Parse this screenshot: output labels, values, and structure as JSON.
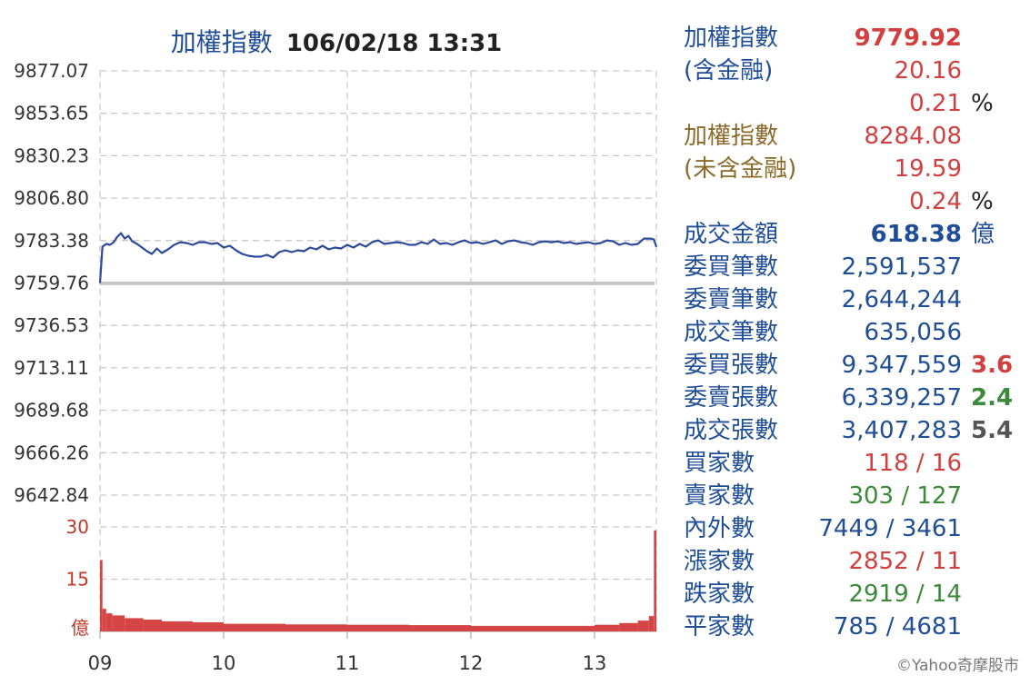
{
  "chart_data": [
    {
      "type": "line",
      "title": "加權指數",
      "datetime": "106/02/18 13:31",
      "x_ticks": [
        "09",
        "10",
        "11",
        "12",
        "13"
      ],
      "x_range_hours": [
        9.0,
        13.5
      ],
      "y_ticks": [
        "9877.07",
        "9853.65",
        "9830.23",
        "9806.80",
        "9783.38",
        "9759.76",
        "9736.53",
        "9713.11",
        "9689.68",
        "9666.26",
        "9642.84"
      ],
      "ylim": [
        9642.84,
        9877.07
      ],
      "reference_value": 9759.76,
      "grid": true,
      "series": [
        {
          "color": "#2c4a9a",
          "points": [
            [
              9.0,
              9760.0
            ],
            [
              9.02,
              9780.0
            ],
            [
              9.05,
              9781.5
            ],
            [
              9.08,
              9781.0
            ],
            [
              9.11,
              9782.5
            ],
            [
              9.14,
              9785.5
            ],
            [
              9.17,
              9787.5
            ],
            [
              9.2,
              9784.5
            ],
            [
              9.23,
              9786.0
            ],
            [
              9.26,
              9783.0
            ],
            [
              9.3,
              9781.5
            ],
            [
              9.34,
              9779.5
            ],
            [
              9.38,
              9777.5
            ],
            [
              9.42,
              9776.0
            ],
            [
              9.46,
              9779.0
            ],
            [
              9.5,
              9776.5
            ],
            [
              9.55,
              9778.5
            ],
            [
              9.6,
              9781.0
            ],
            [
              9.65,
              9782.5
            ],
            [
              9.7,
              9782.0
            ],
            [
              9.75,
              9781.0
            ],
            [
              9.8,
              9782.5
            ],
            [
              9.85,
              9782.5
            ],
            [
              9.9,
              9781.5
            ],
            [
              9.95,
              9782.0
            ],
            [
              10.0,
              9779.5
            ],
            [
              10.05,
              9780.5
            ],
            [
              10.1,
              9778.0
            ],
            [
              10.15,
              9776.0
            ],
            [
              10.2,
              9775.0
            ],
            [
              10.25,
              9774.5
            ],
            [
              10.3,
              9774.5
            ],
            [
              10.35,
              9775.5
            ],
            [
              10.4,
              9774.0
            ],
            [
              10.45,
              9777.0
            ],
            [
              10.5,
              9778.0
            ],
            [
              10.55,
              9777.0
            ],
            [
              10.6,
              9778.0
            ],
            [
              10.65,
              9777.5
            ],
            [
              10.7,
              9779.5
            ],
            [
              10.75,
              9778.5
            ],
            [
              10.8,
              9780.5
            ],
            [
              10.85,
              9778.5
            ],
            [
              10.9,
              9779.5
            ],
            [
              10.95,
              9779.0
            ],
            [
              11.0,
              9781.0
            ],
            [
              11.05,
              9779.5
            ],
            [
              11.1,
              9781.5
            ],
            [
              11.15,
              9780.0
            ],
            [
              11.2,
              9782.5
            ],
            [
              11.25,
              9783.5
            ],
            [
              11.3,
              9781.5
            ],
            [
              11.35,
              9782.0
            ],
            [
              11.4,
              9782.5
            ],
            [
              11.45,
              9782.0
            ],
            [
              11.5,
              9781.0
            ],
            [
              11.55,
              9781.0
            ],
            [
              11.6,
              9782.5
            ],
            [
              11.65,
              9781.5
            ],
            [
              11.7,
              9784.0
            ],
            [
              11.75,
              9781.5
            ],
            [
              11.8,
              9782.0
            ],
            [
              11.85,
              9781.0
            ],
            [
              11.9,
              9782.5
            ],
            [
              11.95,
              9783.5
            ],
            [
              12.0,
              9782.0
            ],
            [
              12.05,
              9782.5
            ],
            [
              12.1,
              9781.5
            ],
            [
              12.15,
              9782.5
            ],
            [
              12.2,
              9783.5
            ],
            [
              12.25,
              9781.5
            ],
            [
              12.3,
              9783.0
            ],
            [
              12.35,
              9783.5
            ],
            [
              12.4,
              9782.5
            ],
            [
              12.45,
              9782.0
            ],
            [
              12.5,
              9781.0
            ],
            [
              12.55,
              9782.5
            ],
            [
              12.6,
              9783.0
            ],
            [
              12.65,
              9782.5
            ],
            [
              12.7,
              9783.0
            ],
            [
              12.75,
              9782.0
            ],
            [
              12.8,
              9782.5
            ],
            [
              12.85,
              9781.5
            ],
            [
              12.9,
              9782.0
            ],
            [
              12.95,
              9782.5
            ],
            [
              13.0,
              9781.5
            ],
            [
              13.05,
              9782.0
            ],
            [
              13.1,
              9783.5
            ],
            [
              13.15,
              9783.0
            ],
            [
              13.2,
              9781.0
            ],
            [
              13.25,
              9782.0
            ],
            [
              13.3,
              9781.0
            ],
            [
              13.35,
              9781.5
            ],
            [
              13.4,
              9784.5
            ],
            [
              13.45,
              9784.5
            ],
            [
              13.48,
              9784.0
            ],
            [
              13.5,
              9779.92
            ]
          ]
        }
      ]
    },
    {
      "type": "bar",
      "y_ticks": [
        "30",
        "15",
        "億"
      ],
      "ylim": [
        0,
        30
      ],
      "x_range_hours": [
        9.0,
        13.5
      ],
      "color": "#d64545",
      "values": [
        {
          "start": 9.0,
          "end": 9.02,
          "value": 20.5
        },
        {
          "start": 9.02,
          "end": 9.05,
          "value": 6.5
        },
        {
          "start": 9.05,
          "end": 9.1,
          "value": 5.2
        },
        {
          "start": 9.1,
          "end": 9.2,
          "value": 4.6
        },
        {
          "start": 9.2,
          "end": 9.35,
          "value": 3.8
        },
        {
          "start": 9.35,
          "end": 9.5,
          "value": 3.4
        },
        {
          "start": 9.5,
          "end": 9.75,
          "value": 2.9
        },
        {
          "start": 9.75,
          "end": 10.0,
          "value": 2.6
        },
        {
          "start": 10.0,
          "end": 10.5,
          "value": 2.2
        },
        {
          "start": 10.5,
          "end": 11.0,
          "value": 2.0
        },
        {
          "start": 11.0,
          "end": 11.5,
          "value": 1.9
        },
        {
          "start": 11.5,
          "end": 12.0,
          "value": 1.8
        },
        {
          "start": 12.0,
          "end": 12.5,
          "value": 1.6
        },
        {
          "start": 12.5,
          "end": 13.0,
          "value": 1.6
        },
        {
          "start": 13.0,
          "end": 13.2,
          "value": 1.9
        },
        {
          "start": 13.2,
          "end": 13.35,
          "value": 2.4
        },
        {
          "start": 13.35,
          "end": 13.44,
          "value": 3.1
        },
        {
          "start": 13.44,
          "end": 13.48,
          "value": 4.4
        },
        {
          "start": 13.48,
          "end": 13.5,
          "value": 29.0
        }
      ]
    }
  ],
  "panel": {
    "rows": [
      {
        "label": "加權指數",
        "value": "9779.92",
        "extra": ""
      },
      {
        "label": "(含金融)",
        "value": "20.16",
        "extra": ""
      },
      {
        "label": "",
        "value": "0.21",
        "extra": "%"
      },
      {
        "label": "加權指數",
        "value": "8284.08",
        "extra": ""
      },
      {
        "label": "(未含金融)",
        "value": "19.59",
        "extra": ""
      },
      {
        "label": "",
        "value": "0.24",
        "extra": "%"
      },
      {
        "label": "成交金額",
        "value": "618.38",
        "extra": "億"
      },
      {
        "label": "委買筆數",
        "value": "2,591,537",
        "extra": ""
      },
      {
        "label": "委賣筆數",
        "value": "2,644,244",
        "extra": ""
      },
      {
        "label": "成交筆數",
        "value": "635,056",
        "extra": ""
      },
      {
        "label": "委買張數",
        "value": "9,347,559",
        "extra": "3.6"
      },
      {
        "label": "委賣張數",
        "value": "6,339,257",
        "extra": "2.4"
      },
      {
        "label": "成交張數",
        "value": "3,407,283",
        "extra": "5.4"
      },
      {
        "label": "買家數",
        "value": "118 / 16",
        "extra": ""
      },
      {
        "label": "賣家數",
        "value": "303 / 127",
        "extra": ""
      },
      {
        "label": "內外數",
        "value": "7449 / 3461",
        "extra": ""
      },
      {
        "label": "漲家數",
        "value": "2852 / 11",
        "extra": ""
      },
      {
        "label": "跌家數",
        "value": "2919 / 14",
        "extra": ""
      },
      {
        "label": "平家數",
        "value": "785 / 4681",
        "extra": ""
      }
    ]
  },
  "colors": {
    "navy": "#1f4e96",
    "red": "#d13f3f",
    "brown": "#8b6a2a",
    "green": "#3b8a3b",
    "index_line": "#2c4a9a",
    "volume_bar": "#d64545",
    "reference_line": "#c4c4c4"
  },
  "copyright": "©Yahoo奇摩股市"
}
